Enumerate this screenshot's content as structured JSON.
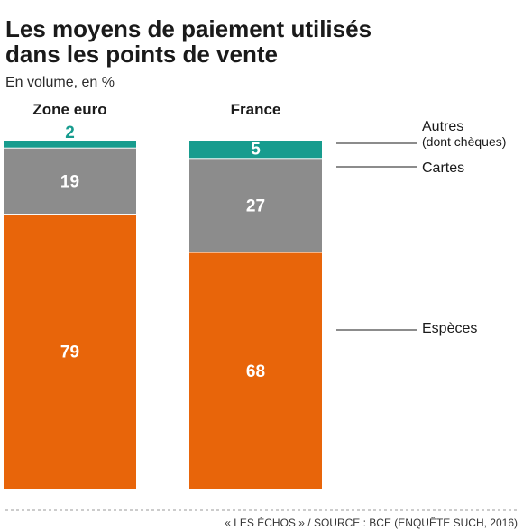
{
  "chart_data": {
    "type": "bar",
    "stacked": true,
    "title_line1": "Les moyens de paiement utilisés",
    "title_line2": "dans les points de vente",
    "subtitle": "En volume, en %",
    "categories": [
      "Zone euro",
      "France"
    ],
    "series": [
      {
        "name": "Espèces",
        "values": [
          79,
          68
        ],
        "color": "#e8650a",
        "label_color": "#ffffff"
      },
      {
        "name": "Cartes",
        "values": [
          19,
          27
        ],
        "color": "#8c8c8c",
        "label_color": "#ffffff"
      },
      {
        "name": "Autres",
        "values": [
          2,
          5
        ],
        "color": "#179c8e",
        "label_colors": [
          "#179c8e",
          "#ffffff"
        ]
      }
    ],
    "legend_extra": {
      "Autres": "(dont chèques)"
    },
    "ylim": [
      0,
      100
    ],
    "grid": false,
    "legend_position": "right",
    "source": "« LES ÉCHOS » / SOURCE : BCE (ENQUÊTE SUCH, 2016)"
  }
}
